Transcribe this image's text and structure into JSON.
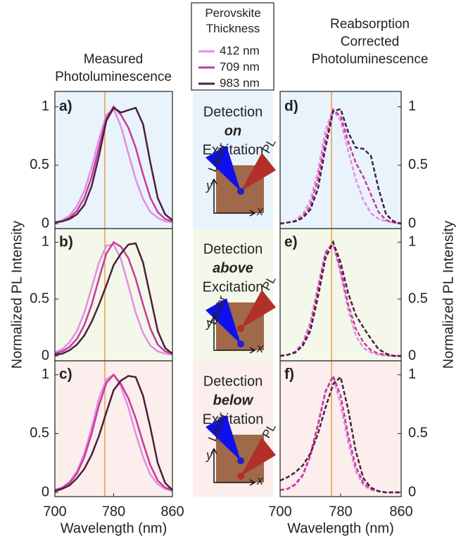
{
  "chart_data": [
    {
      "type": "line",
      "label": "a)",
      "title": "Measured Photoluminescence",
      "legend_title": "Perovskite Thickness",
      "background": "#e9f3fb",
      "vline": 768,
      "dashed": false,
      "xlim": [
        700,
        860
      ],
      "ylim": [
        0,
        1.07
      ],
      "yticks": [
        0,
        0.5,
        1
      ],
      "x": [
        700,
        710,
        720,
        730,
        740,
        750,
        760,
        770,
        780,
        790,
        800,
        810,
        820,
        830,
        840,
        850,
        860
      ],
      "series": [
        {
          "name": "412 nm",
          "color": "#e08ee6",
          "values": [
            0.01,
            0.03,
            0.07,
            0.15,
            0.28,
            0.48,
            0.72,
            0.93,
            0.98,
            0.83,
            0.6,
            0.38,
            0.21,
            0.1,
            0.05,
            0.02,
            0.01
          ]
        },
        {
          "name": "709 nm",
          "color": "#c8399b",
          "values": [
            0.01,
            0.02,
            0.05,
            0.11,
            0.22,
            0.4,
            0.65,
            0.9,
            1.0,
            0.93,
            0.82,
            0.65,
            0.42,
            0.22,
            0.1,
            0.04,
            0.02
          ]
        },
        {
          "name": "983 nm",
          "color": "#4a1f3e",
          "values": [
            0.01,
            0.02,
            0.04,
            0.08,
            0.16,
            0.32,
            0.58,
            0.88,
            0.99,
            0.95,
            0.97,
            0.99,
            0.85,
            0.52,
            0.22,
            0.08,
            0.03
          ]
        }
      ],
      "inset": {
        "lines": [
          "Detection",
          "on",
          "Excitation"
        ],
        "color": "#1a5fb4",
        "laser": "Laser",
        "pl": "PL",
        "y_axis": "y",
        "x_axis": "x"
      }
    },
    {
      "type": "line",
      "label": "b)",
      "ylabel": "Normalized PL Intensity",
      "background": "#f4f8ea",
      "vline": 768,
      "dashed": false,
      "xlim": [
        700,
        860
      ],
      "ylim": [
        0,
        1.07
      ],
      "yticks": [
        0,
        0.5,
        1
      ],
      "x": [
        700,
        710,
        720,
        730,
        740,
        750,
        760,
        770,
        780,
        790,
        800,
        810,
        820,
        830,
        840,
        850,
        860
      ],
      "series": [
        {
          "color": "#e08ee6",
          "values": [
            0.03,
            0.06,
            0.12,
            0.22,
            0.38,
            0.6,
            0.82,
            0.97,
            0.98,
            0.85,
            0.62,
            0.38,
            0.2,
            0.09,
            0.04,
            0.02,
            0.01
          ]
        },
        {
          "color": "#c8399b",
          "values": [
            0.02,
            0.04,
            0.08,
            0.15,
            0.27,
            0.45,
            0.68,
            0.9,
            1.0,
            0.96,
            0.86,
            0.68,
            0.45,
            0.24,
            0.1,
            0.04,
            0.02
          ]
        },
        {
          "color": "#4a1f3e",
          "values": [
            0.01,
            0.02,
            0.05,
            0.1,
            0.18,
            0.3,
            0.45,
            0.62,
            0.8,
            0.9,
            0.98,
            0.99,
            0.82,
            0.52,
            0.22,
            0.07,
            0.02
          ]
        }
      ],
      "inset": {
        "lines": [
          "Detection",
          "above",
          "Excitation"
        ],
        "color": "#7a8a10",
        "laser": "Laser",
        "pl": "PL",
        "y_axis": "y",
        "x_axis": "x"
      }
    },
    {
      "type": "line",
      "label": "c)",
      "xlabel": "Wavelength (nm)",
      "background": "#fbeeec",
      "vline": 768,
      "dashed": false,
      "xlim": [
        700,
        860
      ],
      "ylim": [
        0,
        1.07
      ],
      "yticks": [
        0,
        0.5,
        1
      ],
      "xticks": [
        700,
        780,
        860
      ],
      "x": [
        700,
        710,
        720,
        730,
        740,
        750,
        760,
        770,
        780,
        790,
        800,
        810,
        820,
        830,
        840,
        850,
        860
      ],
      "series": [
        {
          "color": "#e08ee6",
          "values": [
            0.02,
            0.04,
            0.09,
            0.18,
            0.33,
            0.55,
            0.8,
            0.96,
            1.0,
            0.9,
            0.72,
            0.5,
            0.3,
            0.15,
            0.07,
            0.03,
            0.01
          ]
        },
        {
          "color": "#c8399b",
          "values": [
            0.02,
            0.04,
            0.08,
            0.16,
            0.3,
            0.5,
            0.74,
            0.93,
            1.0,
            0.92,
            0.8,
            0.63,
            0.42,
            0.23,
            0.1,
            0.04,
            0.02
          ]
        },
        {
          "color": "#4a1f3e",
          "values": [
            0.01,
            0.03,
            0.06,
            0.12,
            0.2,
            0.32,
            0.48,
            0.68,
            0.87,
            0.95,
            0.99,
            0.98,
            0.82,
            0.55,
            0.25,
            0.08,
            0.02
          ]
        }
      ],
      "inset": {
        "lines": [
          "Detection",
          "below",
          "Excitation"
        ],
        "color": "#b3202a",
        "laser": "Laser",
        "pl": "PL",
        "y_axis": "y",
        "x_axis": "x"
      }
    },
    {
      "type": "line",
      "label": "d)",
      "title": "Reabsorption Corrected Photoluminescence",
      "background": "#e9f3fb",
      "vline": 768,
      "dashed": true,
      "xlim": [
        700,
        860
      ],
      "ylim": [
        0,
        1.07
      ],
      "yticks": [
        0,
        0.5,
        1
      ],
      "x": [
        700,
        710,
        720,
        730,
        740,
        750,
        760,
        770,
        780,
        790,
        800,
        810,
        820,
        830,
        840,
        850,
        860
      ],
      "series": [
        {
          "color": "#e08ee6",
          "values": [
            0.0,
            0.01,
            0.03,
            0.08,
            0.2,
            0.45,
            0.8,
            0.98,
            0.88,
            0.62,
            0.38,
            0.2,
            0.09,
            0.04,
            0.02,
            0.01,
            0.0
          ]
        },
        {
          "color": "#c8399b",
          "values": [
            0.0,
            0.01,
            0.02,
            0.06,
            0.15,
            0.38,
            0.72,
            0.97,
            0.92,
            0.7,
            0.52,
            0.4,
            0.25,
            0.1,
            0.03,
            0.01,
            0.0
          ]
        },
        {
          "color": "#4a1f3e",
          "values": [
            0.0,
            0.01,
            0.02,
            0.05,
            0.12,
            0.3,
            0.65,
            0.96,
            0.98,
            0.78,
            0.65,
            0.64,
            0.58,
            0.3,
            0.08,
            0.02,
            0.0
          ]
        }
      ]
    },
    {
      "type": "line",
      "label": "e)",
      "ylabel": "Normalized PL Intensity",
      "background": "#f4f8ea",
      "vline": 768,
      "dashed": true,
      "xlim": [
        700,
        860
      ],
      "ylim": [
        0,
        1.07
      ],
      "yticks": [
        0,
        0.5,
        1
      ],
      "x": [
        700,
        710,
        720,
        730,
        740,
        750,
        760,
        770,
        780,
        790,
        800,
        810,
        820,
        830,
        840,
        850,
        860
      ],
      "series": [
        {
          "color": "#e08ee6",
          "values": [
            0.0,
            0.01,
            0.04,
            0.12,
            0.3,
            0.62,
            0.92,
            0.98,
            0.72,
            0.4,
            0.18,
            0.07,
            0.03,
            0.01,
            0.0,
            0.0,
            0.0
          ]
        },
        {
          "color": "#c8399b",
          "values": [
            0.0,
            0.01,
            0.03,
            0.1,
            0.26,
            0.58,
            0.9,
            1.0,
            0.76,
            0.45,
            0.24,
            0.12,
            0.05,
            0.02,
            0.01,
            0.0,
            0.0
          ]
        },
        {
          "color": "#4a1f3e",
          "values": [
            0.0,
            0.01,
            0.03,
            0.09,
            0.22,
            0.52,
            0.86,
            1.0,
            0.82,
            0.55,
            0.36,
            0.25,
            0.15,
            0.06,
            0.02,
            0.0,
            0.0
          ]
        }
      ]
    },
    {
      "type": "line",
      "label": "f)",
      "xlabel": "Wavelength (nm)",
      "background": "#fbeeec",
      "vline": 768,
      "dashed": true,
      "xlim": [
        700,
        860
      ],
      "ylim": [
        0,
        1.07
      ],
      "yticks": [
        0,
        0.5,
        1
      ],
      "xticks": [
        700,
        780,
        860
      ],
      "x": [
        700,
        710,
        720,
        730,
        740,
        750,
        760,
        770,
        780,
        790,
        800,
        810,
        820,
        830,
        840,
        850,
        860
      ],
      "series": [
        {
          "color": "#e08ee6",
          "values": [
            0.02,
            0.03,
            0.06,
            0.14,
            0.3,
            0.56,
            0.85,
            0.98,
            0.75,
            0.42,
            0.18,
            0.06,
            0.02,
            0.01,
            0.0,
            0.0,
            0.0
          ]
        },
        {
          "color": "#c8399b",
          "values": [
            0.02,
            0.03,
            0.07,
            0.15,
            0.32,
            0.58,
            0.86,
            0.99,
            0.82,
            0.48,
            0.22,
            0.08,
            0.03,
            0.01,
            0.0,
            0.0,
            0.0
          ]
        },
        {
          "color": "#4a1f3e",
          "values": [
            0.1,
            0.13,
            0.17,
            0.23,
            0.33,
            0.5,
            0.72,
            0.92,
            0.98,
            0.7,
            0.35,
            0.12,
            0.04,
            0.01,
            0.0,
            0.0,
            0.0
          ]
        }
      ]
    }
  ]
}
